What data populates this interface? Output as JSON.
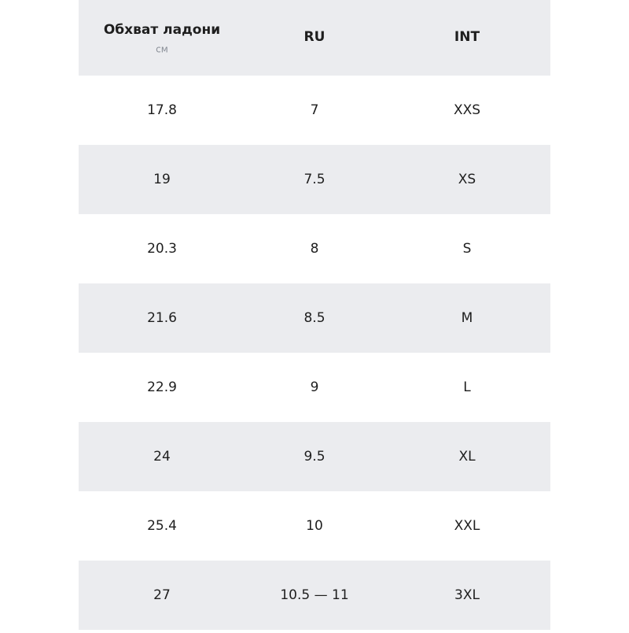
{
  "table": {
    "header": [
      "Обхват ладони",
      "RU",
      "INT"
    ],
    "unit": "см",
    "rows": [
      [
        "17.8",
        "7",
        "XXS"
      ],
      [
        "19",
        "7.5",
        "XS"
      ],
      [
        "20.3",
        "8",
        "S"
      ],
      [
        "21.6",
        "8.5",
        "M"
      ],
      [
        "22.9",
        "9",
        "L"
      ],
      [
        "24",
        "9.5",
        "XL"
      ],
      [
        "25.4",
        "10",
        "XXL"
      ],
      [
        "27",
        "10.5 — 11",
        "3XL"
      ]
    ]
  }
}
